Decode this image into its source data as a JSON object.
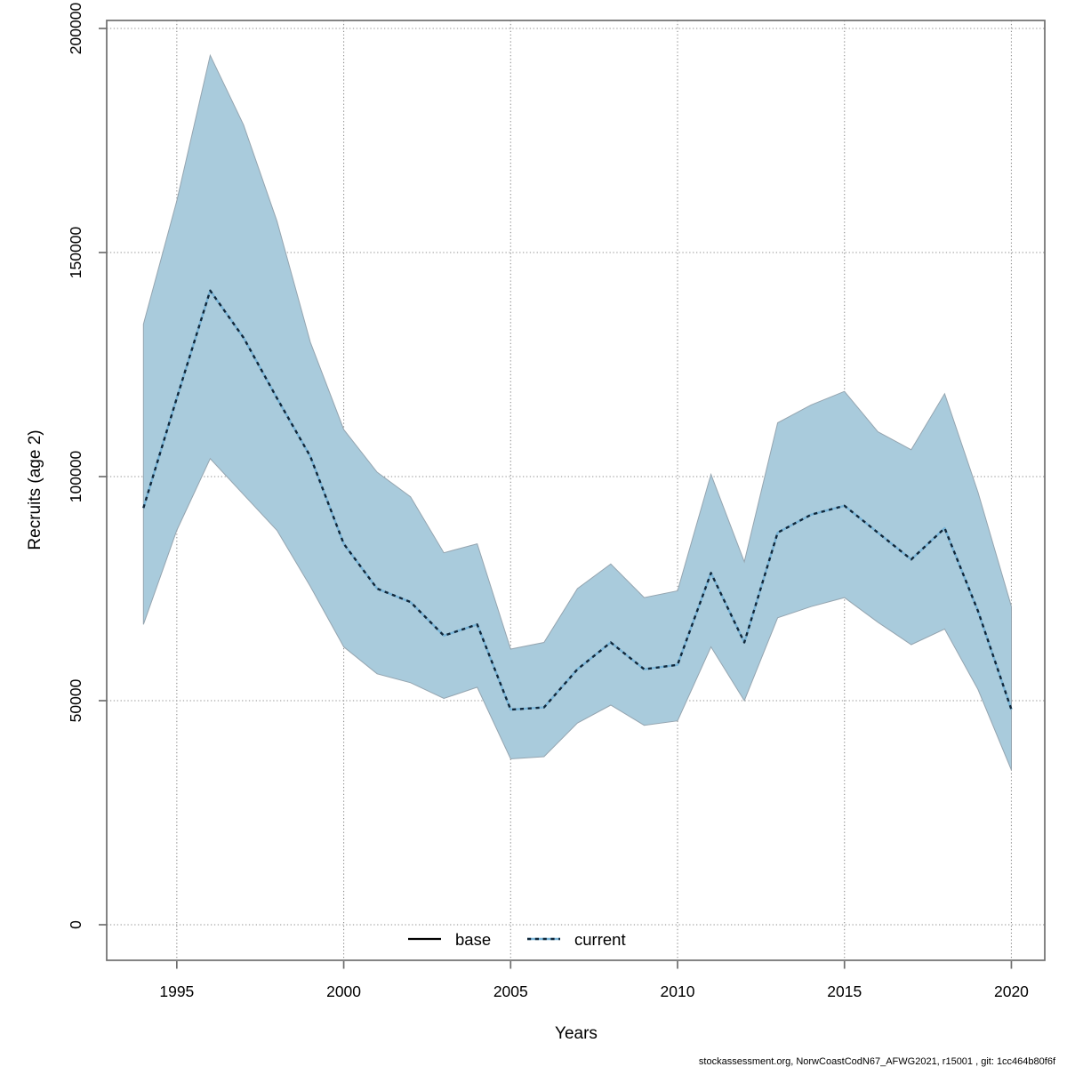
{
  "chart_data": {
    "type": "line",
    "title": "",
    "xlabel": "Years",
    "ylabel": "Recruits (age 2)",
    "x": [
      1994,
      1995,
      1996,
      1997,
      1998,
      1999,
      2000,
      2001,
      2002,
      2003,
      2004,
      2005,
      2006,
      2007,
      2008,
      2009,
      2010,
      2011,
      2012,
      2013,
      2014,
      2015,
      2016,
      2017,
      2018,
      2019,
      2020
    ],
    "series": [
      {
        "name": "current",
        "role": "estimate",
        "values": [
          93000,
          117500,
          141500,
          131000,
          117500,
          104500,
          85000,
          75000,
          72000,
          64500,
          67000,
          48000,
          48500,
          57000,
          63000,
          57000,
          58000,
          78500,
          63000,
          87500,
          91500,
          93500,
          87500,
          81500,
          88500,
          70000,
          48000
        ]
      },
      {
        "name": "current_ci_upper",
        "role": "ci_upper",
        "values": [
          134000,
          161500,
          194000,
          178500,
          157000,
          130000,
          110500,
          101000,
          95500,
          83000,
          85000,
          61500,
          63000,
          75000,
          80500,
          73000,
          74500,
          100500,
          81000,
          112000,
          116000,
          119000,
          110000,
          106000,
          118500,
          96500,
          71000
        ]
      },
      {
        "name": "current_ci_lower",
        "role": "ci_lower",
        "values": [
          67000,
          88000,
          104000,
          96000,
          88000,
          75500,
          62000,
          56000,
          54000,
          50500,
          53000,
          37000,
          37500,
          45000,
          49000,
          44500,
          45500,
          62000,
          50000,
          68500,
          71000,
          73000,
          67500,
          62500,
          66000,
          52500,
          34500
        ]
      }
    ],
    "x_ticks": [
      {
        "value": 1995,
        "label": "1995"
      },
      {
        "value": 2000,
        "label": "2000"
      },
      {
        "value": 2005,
        "label": "2005"
      },
      {
        "value": 2010,
        "label": "2010"
      },
      {
        "value": 2015,
        "label": "2015"
      },
      {
        "value": 2020,
        "label": "2020"
      }
    ],
    "y_ticks": [
      {
        "value": 0,
        "label": "0"
      },
      {
        "value": 50000,
        "label": "50000"
      },
      {
        "value": 100000,
        "label": "100000"
      },
      {
        "value": 150000,
        "label": "150000"
      },
      {
        "value": 200000,
        "label": "200000"
      }
    ],
    "xlim": [
      1992.9,
      2021.0
    ],
    "ylim": [
      -7900,
      201800
    ],
    "grid": true,
    "legend_position": "bottom-center",
    "legend": [
      {
        "label": "base",
        "line_style": "solid",
        "color": "#000000"
      },
      {
        "label": "current",
        "line_style": "dotted",
        "color": "#10273a"
      }
    ]
  },
  "colors": {
    "band_fill": "#a9cbdc",
    "band_edge": "#95a5b0",
    "current_dark": "#10273a",
    "current_light": "#79b5d8",
    "grid": "#8f8f8f",
    "axis": "#6e6e6e",
    "text": "#000000"
  },
  "footer_credit": "stockassessment.org, NorwCoastCodN67_AFWG2021, r15001 , git: 1cc464b80f6f"
}
